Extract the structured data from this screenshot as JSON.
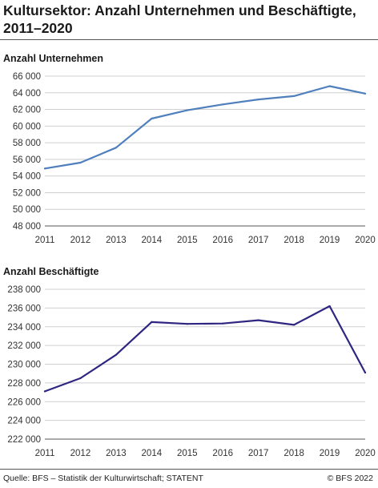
{
  "title": "Kultursektor: Anzahl Unternehmen und Beschäftigte, 2011–2020",
  "footer": {
    "source": "Quelle: BFS – Statistik der Kulturwirtschaft; STATENT",
    "copyright": "© BFS 2022"
  },
  "colors": {
    "series1": "#4f7fbd",
    "series2": "#2e2680",
    "grid": "#cfcfcf"
  },
  "chart_data": [
    {
      "type": "line",
      "title": "Anzahl Unternehmen",
      "x": [
        "2011",
        "2012",
        "2013",
        "2014",
        "2015",
        "2016",
        "2017",
        "2018",
        "2019",
        "2020"
      ],
      "series": [
        {
          "values": [
            54900,
            55600,
            57400,
            60900,
            61900,
            62600,
            63200,
            63600,
            64800,
            63900
          ]
        }
      ],
      "ylim": [
        48000,
        66000
      ],
      "yticks": [
        48000,
        50000,
        52000,
        54000,
        56000,
        58000,
        60000,
        62000,
        64000,
        66000
      ],
      "ytick_labels": [
        "48 000",
        "50 000",
        "52 000",
        "54 000",
        "56 000",
        "58 000",
        "60 000",
        "62 000",
        "64 000",
        "66 000"
      ],
      "grid": true,
      "color": "#4f7fbd"
    },
    {
      "type": "line",
      "title": "Anzahl Beschäftigte",
      "x": [
        "2011",
        "2012",
        "2013",
        "2014",
        "2015",
        "2016",
        "2017",
        "2018",
        "2019",
        "2020"
      ],
      "series": [
        {
          "values": [
            227100,
            228500,
            231000,
            234500,
            234300,
            234350,
            234700,
            234200,
            236200,
            229100
          ]
        }
      ],
      "ylim": [
        222000,
        238000
      ],
      "yticks": [
        222000,
        224000,
        226000,
        228000,
        230000,
        232000,
        234000,
        236000,
        238000
      ],
      "ytick_labels": [
        "222 000",
        "224 000",
        "226 000",
        "228 000",
        "230 000",
        "232 000",
        "234 000",
        "236 000",
        "238 000"
      ],
      "grid": true,
      "color": "#2e2680"
    }
  ]
}
